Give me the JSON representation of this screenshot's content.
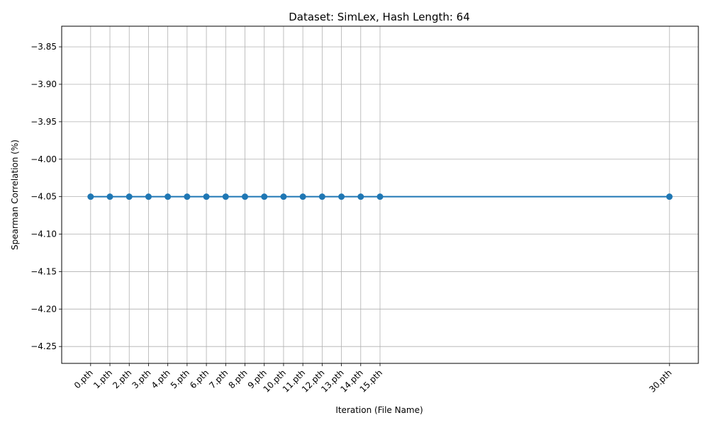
{
  "chart_data": {
    "type": "line",
    "title": "Dataset: SimLex, Hash Length: 64",
    "xlabel": "Iteration (File Name)",
    "ylabel": "Spearman Correlation (%)",
    "x": [
      0,
      1,
      2,
      3,
      4,
      5,
      6,
      7,
      8,
      9,
      10,
      11,
      12,
      13,
      14,
      15,
      30
    ],
    "x_tick_labels": [
      "0.pth",
      "1.pth",
      "2.pth",
      "3.pth",
      "4.pth",
      "5.pth",
      "6.pth",
      "7.pth",
      "8.pth",
      "9.pth",
      "10.pth",
      "11.pth",
      "12.pth",
      "13.pth",
      "14.pth",
      "15.pth",
      "30.pth"
    ],
    "series": [
      {
        "values": [
          -4.05,
          -4.05,
          -4.05,
          -4.05,
          -4.05,
          -4.05,
          -4.05,
          -4.05,
          -4.05,
          -4.05,
          -4.05,
          -4.05,
          -4.05,
          -4.05,
          -4.05,
          -4.05,
          -4.05
        ],
        "color": "#1f77b4"
      }
    ],
    "xlim": [
      -1.5,
      31.5
    ],
    "ylim": [
      -4.2725,
      -3.8225
    ],
    "y_ticks": [
      -3.85,
      -3.9,
      -3.95,
      -4.0,
      -4.05,
      -4.1,
      -4.15,
      -4.2,
      -4.25
    ],
    "y_tick_labels": [
      "−3.85",
      "−3.90",
      "−3.95",
      "−4.00",
      "−4.05",
      "−4.10",
      "−4.15",
      "−4.20",
      "−4.25"
    ],
    "grid": true,
    "x_tick_rotation_deg": 45
  }
}
